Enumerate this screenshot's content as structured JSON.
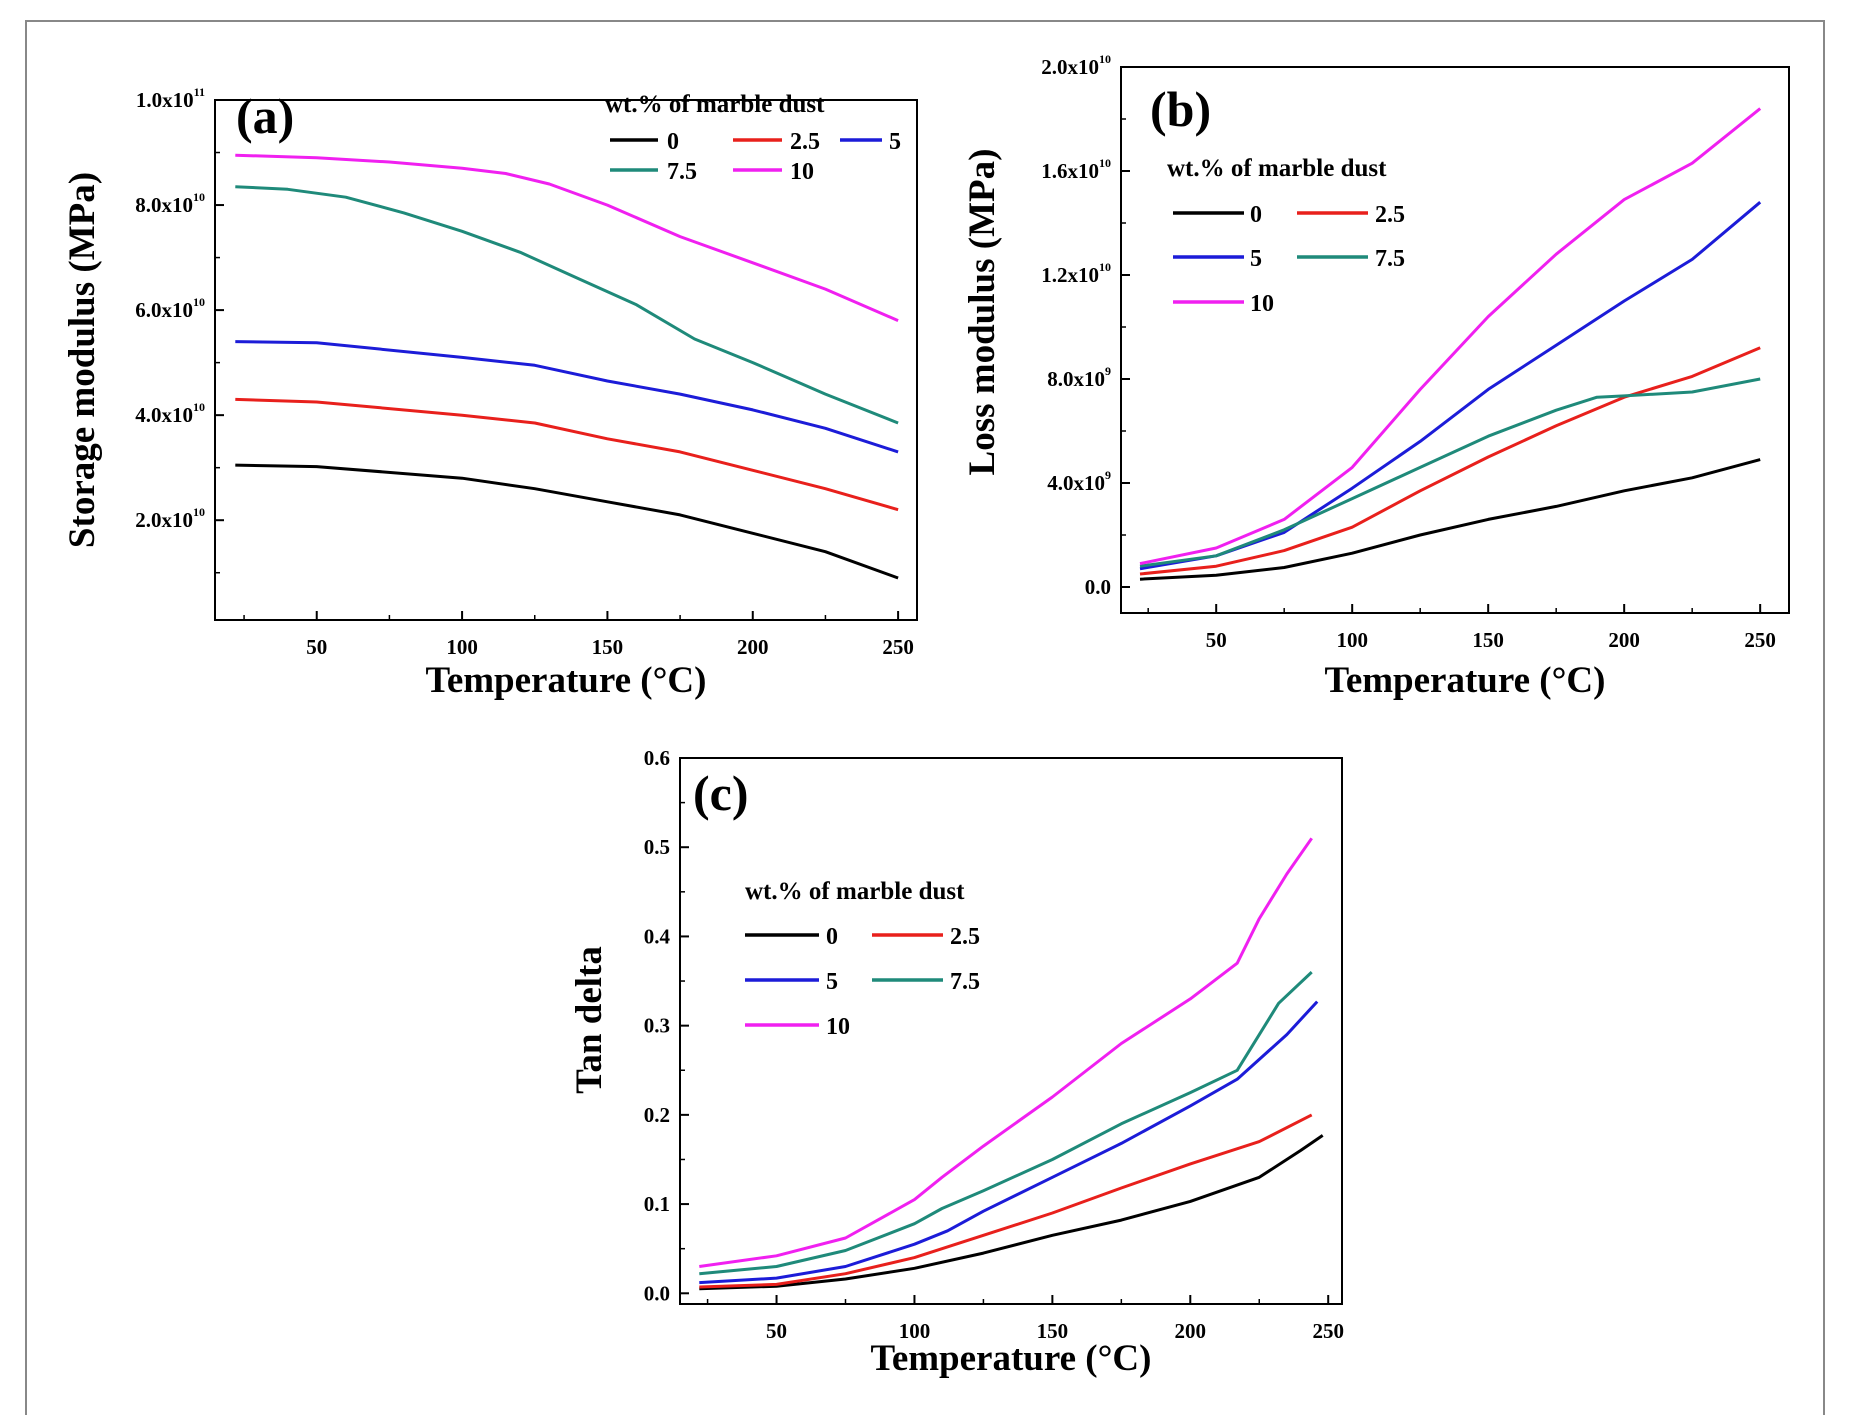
{
  "chart_data": [
    {
      "type": "line",
      "panel_label": "(a)",
      "xlabel": "Temperature (°C)",
      "ylabel": "Storage modulus (MPa)",
      "xlim": [
        15,
        256.5
      ],
      "ylim": [
        1000000000.0,
        100000000000.0
      ],
      "xticks": [
        50,
        100,
        150,
        200,
        250
      ],
      "xtick_labels": [
        "50",
        "100",
        "150",
        "200",
        "250"
      ],
      "yticks": [
        20000000000.0,
        40000000000.0,
        60000000000.0,
        80000000000.0,
        100000000000.0
      ],
      "ytick_labels": [
        [
          "2.0x10",
          "10"
        ],
        [
          "4.0x10",
          "10"
        ],
        [
          "6.0x10",
          "10"
        ],
        [
          "8.0x10",
          "10"
        ],
        [
          "1.0x10",
          "11"
        ]
      ],
      "legend_title": "wt.% of marble dust",
      "legend_placement": "top-right",
      "grid": false,
      "series": [
        {
          "name": "0",
          "color": "#000000",
          "x": [
            22,
            50,
            100,
            125,
            150,
            175,
            200,
            225,
            250
          ],
          "y": [
            30500000000.0,
            30200000000.0,
            28000000000.0,
            26000000000.0,
            23500000000.0,
            21000000000.0,
            17500000000.0,
            14000000000.0,
            9000000000.0
          ]
        },
        {
          "name": "2.5",
          "color": "#e8201c",
          "x": [
            22,
            50,
            100,
            125,
            150,
            175,
            200,
            225,
            250
          ],
          "y": [
            43000000000.0,
            42500000000.0,
            40000000000.0,
            38500000000.0,
            35500000000.0,
            33000000000.0,
            29500000000.0,
            26000000000.0,
            22000000000.0
          ]
        },
        {
          "name": "5",
          "color": "#1c1cd8",
          "x": [
            22,
            50,
            100,
            125,
            150,
            175,
            200,
            225,
            250
          ],
          "y": [
            54000000000.0,
            53800000000.0,
            51000000000.0,
            49500000000.0,
            46500000000.0,
            44000000000.0,
            41000000000.0,
            37500000000.0,
            33000000000.0
          ]
        },
        {
          "name": "7.5",
          "color": "#1f8a7a",
          "x": [
            22,
            40,
            60,
            80,
            100,
            120,
            140,
            160,
            180,
            200,
            225,
            250
          ],
          "y": [
            83500000000.0,
            83000000000.0,
            81500000000.0,
            78500000000.0,
            75000000000.0,
            71000000000.0,
            66000000000.0,
            61000000000.0,
            54500000000.0,
            50000000000.0,
            44000000000.0,
            38500000000.0
          ]
        },
        {
          "name": "10",
          "color": "#f020f0",
          "x": [
            22,
            50,
            75,
            100,
            115,
            130,
            150,
            175,
            200,
            225,
            250
          ],
          "y": [
            89500000000.0,
            89000000000.0,
            88200000000.0,
            87000000000.0,
            86000000000.0,
            84000000000.0,
            80000000000.0,
            74000000000.0,
            69000000000.0,
            64000000000.0,
            58000000000.0
          ]
        }
      ]
    },
    {
      "type": "line",
      "panel_label": "(b)",
      "xlabel": "Temperature (°C)",
      "ylabel": "Loss modulus (MPa)",
      "xlim": [
        15,
        260.6
      ],
      "ylim": [
        -1000000000.0,
        20000000000.0
      ],
      "xticks": [
        50,
        100,
        150,
        200,
        250
      ],
      "xtick_labels": [
        "50",
        "100",
        "150",
        "200",
        "250"
      ],
      "yticks": [
        0,
        4000000000.0,
        8000000000.0,
        12000000000.0,
        16000000000.0,
        20000000000.0
      ],
      "ytick_labels": [
        [
          "0.0",
          ""
        ],
        [
          "4.0x10",
          "9"
        ],
        [
          "8.0x10",
          "9"
        ],
        [
          "1.2x10",
          "10"
        ],
        [
          "1.6x10",
          "10"
        ],
        [
          "2.0x10",
          "10"
        ]
      ],
      "legend_title": "wt.% of marble dust",
      "legend_placement": "top-left",
      "grid": false,
      "series": [
        {
          "name": "0",
          "color": "#000000",
          "x": [
            22,
            50,
            75,
            100,
            125,
            150,
            175,
            200,
            225,
            250
          ],
          "y": [
            300000000.0,
            450000000.0,
            750000000.0,
            1300000000.0,
            2000000000.0,
            2600000000.0,
            3100000000.0,
            3700000000.0,
            4200000000.0,
            4900000000.0
          ]
        },
        {
          "name": "2.5",
          "color": "#e8201c",
          "x": [
            22,
            50,
            75,
            100,
            125,
            150,
            175,
            200,
            225,
            250
          ],
          "y": [
            500000000.0,
            800000000.0,
            1400000000.0,
            2300000000.0,
            3700000000.0,
            5000000000.0,
            6200000000.0,
            7300000000.0,
            8100000000.0,
            9200000000.0
          ]
        },
        {
          "name": "5",
          "color": "#1c1cd8",
          "x": [
            22,
            50,
            75,
            100,
            125,
            150,
            175,
            200,
            225,
            250
          ],
          "y": [
            700000000.0,
            1200000000.0,
            2100000000.0,
            3800000000.0,
            5600000000.0,
            7600000000.0,
            9300000000.0,
            11000000000.0,
            12600000000.0,
            14800000000.0
          ]
        },
        {
          "name": "7.5",
          "color": "#1f8a7a",
          "x": [
            22,
            50,
            75,
            100,
            125,
            150,
            175,
            190,
            200,
            225,
            250
          ],
          "y": [
            800000000.0,
            1200000000.0,
            2200000000.0,
            3400000000.0,
            4600000000.0,
            5800000000.0,
            6800000000.0,
            7300000000.0,
            7350000000.0,
            7500000000.0,
            8000000000.0
          ]
        },
        {
          "name": "10",
          "color": "#f020f0",
          "x": [
            22,
            50,
            75,
            100,
            125,
            150,
            175,
            200,
            225,
            250
          ],
          "y": [
            900000000.0,
            1500000000.0,
            2600000000.0,
            4600000000.0,
            7600000000.0,
            10400000000.0,
            12800000000.0,
            14900000000.0,
            16300000000.0,
            18400000000.0
          ]
        }
      ]
    },
    {
      "type": "line",
      "panel_label": "(c)",
      "xlabel": "Temperature (°C)",
      "ylabel": "Tan delta",
      "xlim": [
        15,
        255
      ],
      "ylim": [
        -0.012,
        0.6
      ],
      "xticks": [
        50,
        100,
        150,
        200,
        250
      ],
      "xtick_labels": [
        "50",
        "100",
        "150",
        "200",
        "250"
      ],
      "yticks": [
        0,
        0.1,
        0.2,
        0.3,
        0.4,
        0.5,
        0.6
      ],
      "ytick_labels": [
        [
          "0.0",
          ""
        ],
        [
          "0.1",
          ""
        ],
        [
          "0.2",
          ""
        ],
        [
          "0.3",
          ""
        ],
        [
          "0.4",
          ""
        ],
        [
          "0.5",
          ""
        ],
        [
          "0.6",
          ""
        ]
      ],
      "legend_title": "wt.% of marble dust",
      "legend_placement": "top-left",
      "grid": false,
      "series": [
        {
          "name": "0",
          "color": "#000000",
          "x": [
            22,
            50,
            75,
            100,
            125,
            150,
            175,
            200,
            225,
            240,
            248
          ],
          "y": [
            0.005,
            0.008,
            0.016,
            0.028,
            0.045,
            0.065,
            0.082,
            0.103,
            0.13,
            0.16,
            0.177
          ]
        },
        {
          "name": "2.5",
          "color": "#e8201c",
          "x": [
            22,
            50,
            75,
            100,
            125,
            150,
            175,
            200,
            225,
            244
          ],
          "y": [
            0.007,
            0.01,
            0.022,
            0.04,
            0.065,
            0.09,
            0.118,
            0.145,
            0.17,
            0.2
          ]
        },
        {
          "name": "5",
          "color": "#1c1cd8",
          "x": [
            22,
            50,
            75,
            100,
            112,
            125,
            150,
            175,
            200,
            217,
            235,
            246
          ],
          "y": [
            0.012,
            0.017,
            0.03,
            0.055,
            0.07,
            0.092,
            0.13,
            0.168,
            0.21,
            0.24,
            0.29,
            0.327
          ]
        },
        {
          "name": "7.5",
          "color": "#1f8a7a",
          "x": [
            22,
            50,
            75,
            100,
            110,
            125,
            150,
            175,
            200,
            217,
            225,
            232,
            244
          ],
          "y": [
            0.022,
            0.03,
            0.048,
            0.078,
            0.095,
            0.115,
            0.15,
            0.19,
            0.225,
            0.25,
            0.29,
            0.325,
            0.36
          ]
        },
        {
          "name": "10",
          "color": "#f020f0",
          "x": [
            22,
            50,
            75,
            100,
            110,
            125,
            150,
            175,
            200,
            217,
            225,
            235,
            244
          ],
          "y": [
            0.03,
            0.042,
            0.062,
            0.105,
            0.13,
            0.165,
            0.22,
            0.28,
            0.33,
            0.37,
            0.42,
            0.47,
            0.51
          ]
        }
      ]
    }
  ]
}
